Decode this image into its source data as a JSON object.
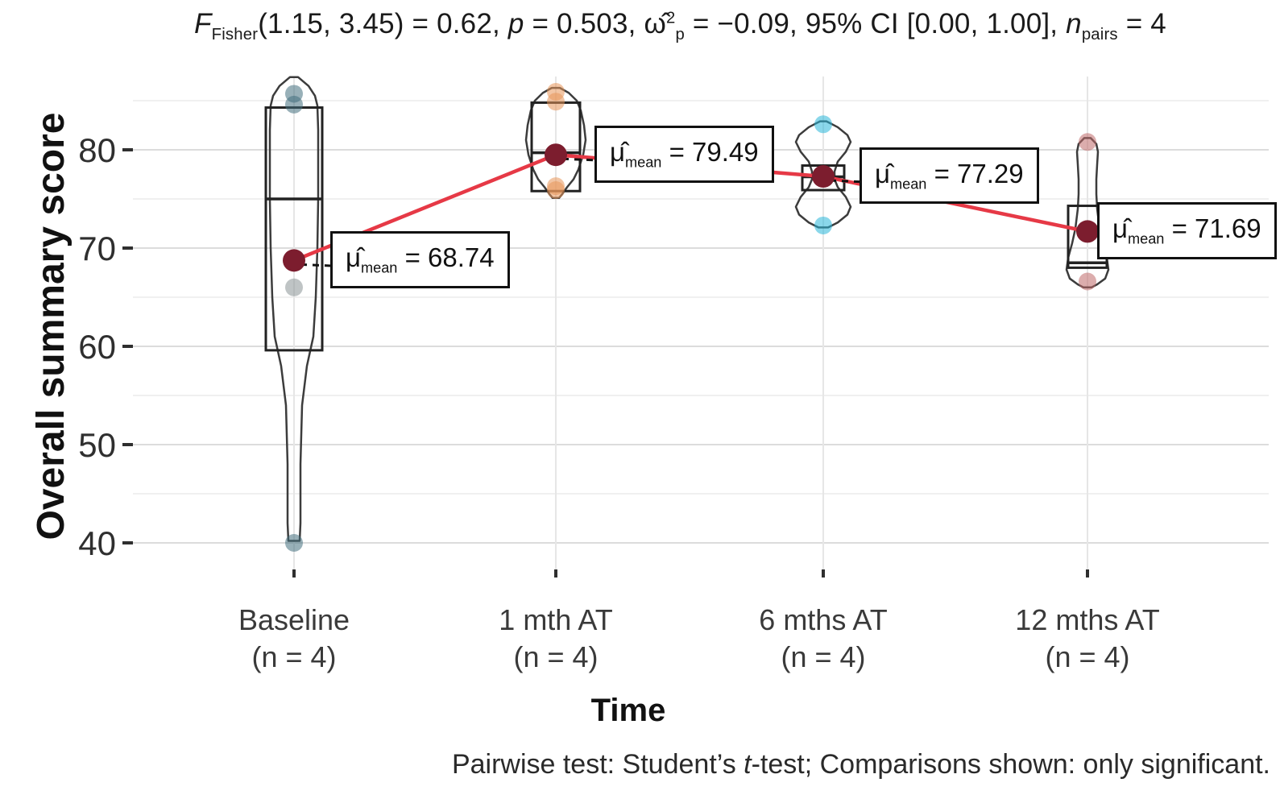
{
  "title": {
    "segments": [
      {
        "t": "F",
        "s": "i"
      },
      {
        "t": "Fisher",
        "s": "sub"
      },
      {
        "t": "(1.15, 3.45) = 0.62, ",
        "s": ""
      },
      {
        "t": "p",
        "s": "i"
      },
      {
        "t": " = 0.503, ",
        "s": ""
      },
      {
        "t": "ω̂",
        "s": ""
      },
      {
        "t": "2",
        "s": "sup"
      },
      {
        "t": "p",
        "s": "sub"
      },
      {
        "t": " = −0.09, 95% CI [0.00, 1.00], ",
        "s": ""
      },
      {
        "t": "n",
        "s": "i"
      },
      {
        "t": "pairs",
        "s": "sub"
      },
      {
        "t": " = 4",
        "s": ""
      }
    ]
  },
  "caption": {
    "segments": [
      {
        "t": "Pairwise test: Student’s ",
        "s": ""
      },
      {
        "t": "t",
        "s": "i"
      },
      {
        "t": "-test; Comparisons shown: only significant.",
        "s": ""
      }
    ]
  },
  "axes": {
    "y_title": "Overall summary score",
    "x_title": "Time",
    "y_ticks": [
      40,
      50,
      60,
      70,
      80
    ],
    "y_minor_ticks": [
      45,
      55,
      65,
      75,
      85
    ]
  },
  "chart_data": {
    "type": "violin-box",
    "title": "F_Fisher(1.15, 3.45) = 0.62, p = 0.503, omega2_p = -0.09, 95% CI [0.00, 1.00], n_pairs = 4",
    "xlabel": "Time",
    "ylabel": "Overall summary score",
    "ylim": [
      37,
      88
    ],
    "grid": true,
    "categories": [
      "Baseline\n(n = 4)",
      "1 mth AT\n(n = 4)",
      "6 mths AT\n(n = 4)",
      "12 mths AT\n(n = 4)"
    ],
    "trend_color": "#e63946",
    "mean_dot_color": "#7c1d2e",
    "groups": [
      {
        "name": "Baseline",
        "n_label": "(n = 4)",
        "mean": 68.74,
        "mean_label": {
          "mu": "μ̂",
          "sub": "mean",
          "value": "= 68.74"
        },
        "box": {
          "q1": 59.6,
          "median": 75.0,
          "q3": 84.3
        },
        "box_halfwidth": 35,
        "whiskers": {
          "low": 40.0,
          "high": 85.7
        },
        "points": [
          {
            "v": 85.7,
            "c": "#44707e"
          },
          {
            "v": 84.6,
            "c": "#44707e"
          },
          {
            "v": 66.0,
            "c": "#8a9396"
          },
          {
            "v": 40.0,
            "c": "#44707e"
          }
        ],
        "violin_profile": [
          [
            87.4,
            5
          ],
          [
            86.5,
            18
          ],
          [
            85.5,
            26
          ],
          [
            84.5,
            29
          ],
          [
            82,
            30
          ],
          [
            78,
            30
          ],
          [
            75,
            30
          ],
          [
            70,
            29
          ],
          [
            65,
            27
          ],
          [
            61,
            24
          ],
          [
            58,
            16
          ],
          [
            54,
            10
          ],
          [
            48,
            8
          ],
          [
            42,
            8
          ],
          [
            40.2,
            7
          ]
        ]
      },
      {
        "name": "1 mth AT",
        "n_label": "(n = 4)",
        "mean": 79.49,
        "mean_label": {
          "mu": "μ̂",
          "sub": "mean",
          "value": "= 79.49"
        },
        "box": {
          "q1": 75.8,
          "median": 79.7,
          "q3": 84.8
        },
        "box_halfwidth": 30,
        "whiskers": {
          "low": 75.9,
          "high": 85.9
        },
        "points": [
          {
            "v": 85.9,
            "c": "#e8965a"
          },
          {
            "v": 84.9,
            "c": "#e8965a"
          },
          {
            "v": 76.3,
            "c": "#e8965a"
          },
          {
            "v": 75.9,
            "c": "#e8965a"
          }
        ],
        "violin_profile": [
          [
            86.3,
            5
          ],
          [
            85.8,
            16
          ],
          [
            85,
            26
          ],
          [
            84,
            31
          ],
          [
            82.5,
            35
          ],
          [
            81,
            37
          ],
          [
            79.5,
            34
          ],
          [
            78,
            28
          ],
          [
            77,
            22
          ],
          [
            76.2,
            14
          ],
          [
            75.5,
            8
          ],
          [
            75.1,
            4
          ]
        ]
      },
      {
        "name": "6 mths AT",
        "n_label": "(n = 4)",
        "mean": 77.29,
        "mean_label": {
          "mu": "μ̂",
          "sub": "mean",
          "value": "= 77.29"
        },
        "box": {
          "q1": 75.9,
          "median": 77.25,
          "q3": 78.4
        },
        "box_halfwidth": 26,
        "whiskers": {
          "low": 72.3,
          "high": 82.6
        },
        "points": [
          {
            "v": 82.6,
            "c": "#29b6d8"
          },
          {
            "v": 72.3,
            "c": "#29b6d8"
          }
        ],
        "violin_profile": [
          [
            82.9,
            4
          ],
          [
            82.3,
            18
          ],
          [
            81.5,
            30
          ],
          [
            80.8,
            34
          ],
          [
            79.8,
            28
          ],
          [
            78.8,
            18
          ],
          [
            77.8,
            14
          ],
          [
            77.0,
            14
          ],
          [
            76.2,
            18
          ],
          [
            75.2,
            28
          ],
          [
            74.2,
            34
          ],
          [
            73.4,
            30
          ],
          [
            72.6,
            18
          ],
          [
            72.1,
            6
          ]
        ]
      },
      {
        "name": "12 mths AT",
        "n_label": "(n = 4)",
        "mean": 71.69,
        "mean_label": {
          "mu": "μ̂",
          "sub": "mean",
          "value": "= 71.69"
        },
        "box": {
          "q1": 68.0,
          "median": 68.5,
          "q3": 74.3
        },
        "box_halfwidth": 24,
        "whiskers": {
          "low": 66.6,
          "high": 80.8
        },
        "points": [
          {
            "v": 80.8,
            "c": "#c06a6a"
          },
          {
            "v": 66.6,
            "c": "#c06a6a"
          }
        ],
        "violin_profile": [
          [
            81.2,
            4
          ],
          [
            80.6,
            11
          ],
          [
            79.8,
            13
          ],
          [
            78.5,
            12
          ],
          [
            77,
            11
          ],
          [
            75.5,
            11
          ],
          [
            74,
            12
          ],
          [
            72,
            15
          ],
          [
            70.5,
            19
          ],
          [
            69,
            24
          ],
          [
            67.8,
            26
          ],
          [
            66.9,
            22
          ],
          [
            66.3,
            12
          ],
          [
            66.0,
            5
          ]
        ]
      }
    ]
  }
}
